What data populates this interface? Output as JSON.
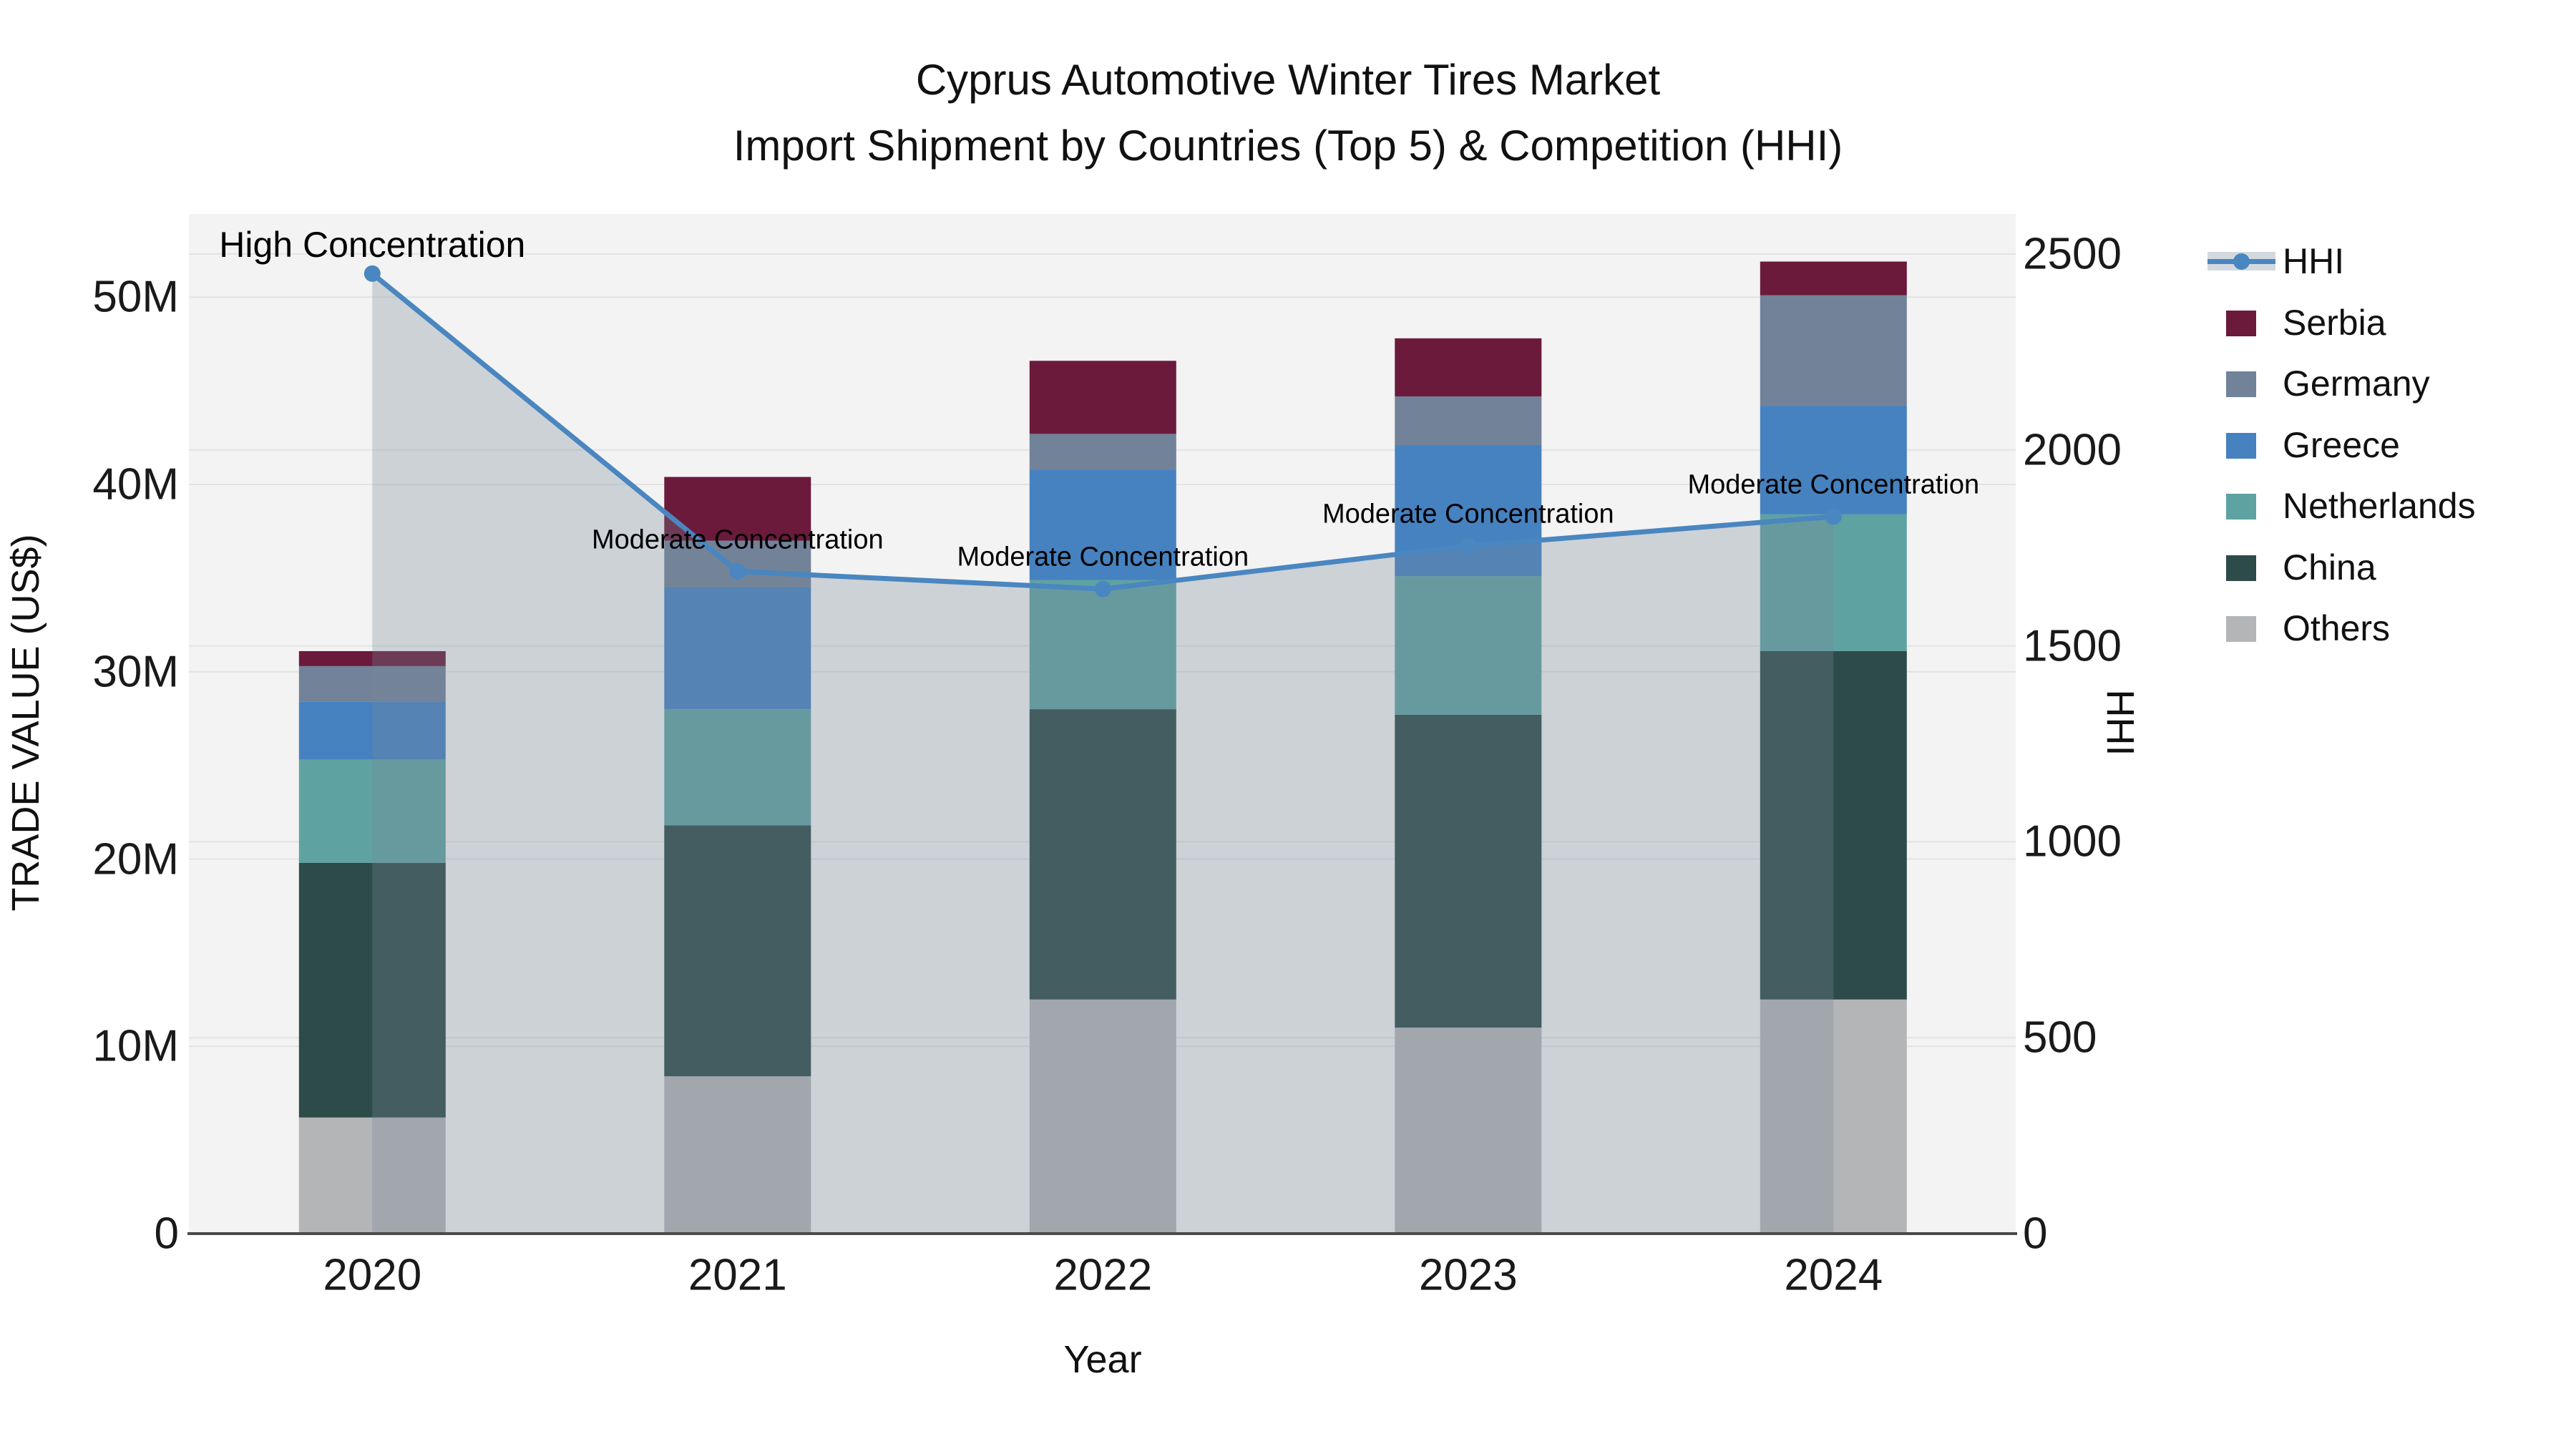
{
  "title": {
    "line1": "Cyprus Automotive Winter Tires Market",
    "line2": "Import Shipment by Countries (Top 5) & Competition (HHI)"
  },
  "chart_data": {
    "type": "bar",
    "subtype": "stacked-bars-with-line",
    "categories": [
      "2020",
      "2021",
      "2022",
      "2023",
      "2024"
    ],
    "values_unit": "million US$",
    "series": [
      {
        "name": "Others",
        "color": "#b3b5b6",
        "values": [
          6.2,
          8.4,
          12.5,
          11.0,
          12.5
        ]
      },
      {
        "name": "China",
        "color": "#2d4b48",
        "values": [
          13.6,
          13.4,
          15.5,
          16.7,
          18.6
        ]
      },
      {
        "name": "Netherlands",
        "color": "#5fa2a2",
        "values": [
          5.5,
          6.2,
          6.9,
          7.4,
          7.3
        ]
      },
      {
        "name": "Greece",
        "color": "#4682c0",
        "values": [
          3.1,
          6.5,
          5.9,
          7.0,
          5.8
        ]
      },
      {
        "name": "Germany",
        "color": "#718299",
        "values": [
          1.9,
          2.5,
          1.9,
          2.6,
          5.9
        ]
      },
      {
        "name": "Serbia",
        "color": "#6b1a3c",
        "values": [
          0.8,
          3.4,
          3.9,
          3.1,
          1.8
        ]
      }
    ],
    "line_series": {
      "name": "HHI",
      "color": "#4a86c0",
      "fill_color": "#778899",
      "fill_opacity": 0.3,
      "values": [
        2450,
        1690,
        1645,
        1755,
        1830
      ]
    },
    "annotations": [
      {
        "text": "High Concentration"
      },
      {
        "text": "Moderate Concentration"
      },
      {
        "text": "Moderate Concentration"
      },
      {
        "text": "Moderate Concentration"
      },
      {
        "text": "Moderate Concentration"
      }
    ],
    "xlabel": "Year",
    "y1": {
      "label": "TRADE VALUE (US$)",
      "ticks": [
        "0",
        "10M",
        "20M",
        "30M",
        "40M",
        "50M"
      ],
      "tick_values": [
        0,
        10,
        20,
        30,
        40,
        50
      ],
      "range": [
        0,
        54.4
      ]
    },
    "y2": {
      "label": "HHI",
      "ticks": [
        "0",
        "500",
        "1000",
        "1500",
        "2000",
        "2500"
      ],
      "tick_values": [
        0,
        500,
        1000,
        1500,
        2000,
        2500
      ],
      "range": [
        0,
        2602
      ]
    },
    "legend": [
      {
        "label": "HHI",
        "type": "line",
        "color": "#4a86c0"
      },
      {
        "label": "Serbia",
        "type": "square",
        "color": "#6b1a3c"
      },
      {
        "label": "Germany",
        "type": "square",
        "color": "#718299"
      },
      {
        "label": "Greece",
        "type": "square",
        "color": "#4682c0"
      },
      {
        "label": "Netherlands",
        "type": "square",
        "color": "#5fa2a2"
      },
      {
        "label": "China",
        "type": "square",
        "color": "#2d4b48"
      },
      {
        "label": "Others",
        "type": "square",
        "color": "#b3b5b6"
      }
    ],
    "plot_bg": "#f3f3f3",
    "grid_color": "#e3e3e3",
    "axis_line_color": "#4b4b4b",
    "grid": true,
    "legend_position": "top-right"
  }
}
